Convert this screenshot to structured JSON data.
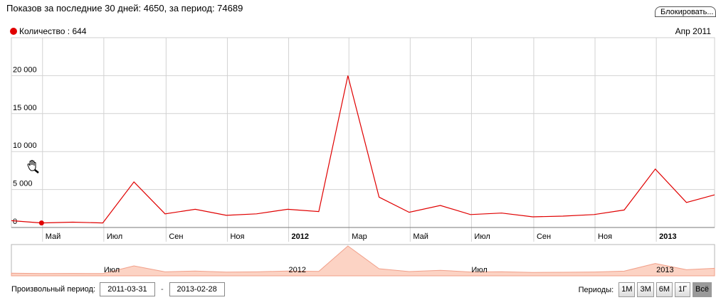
{
  "header": {
    "stats_text": "Показов за последние 30 дней: 4650, за период: 74689",
    "block_button_label": "Блокировать..."
  },
  "legend": {
    "series_label": "Количество : 644",
    "color": "#e00000"
  },
  "date_readout": "Апр 2011",
  "chart_data": {
    "type": "line",
    "x": [
      "2011-03-31",
      "2011-04-30",
      "2011-05-31",
      "2011-06-30",
      "2011-07-31",
      "2011-08-31",
      "2011-09-30",
      "2011-10-31",
      "2011-11-30",
      "2011-12-31",
      "2012-01-31",
      "2012-02-29",
      "2012-03-31",
      "2012-04-30",
      "2012-05-31",
      "2012-06-30",
      "2012-07-31",
      "2012-08-31",
      "2012-09-30",
      "2012-10-31",
      "2012-11-30",
      "2012-12-31",
      "2013-01-31",
      "2013-02-28"
    ],
    "series": [
      {
        "values": [
          900,
          600,
          700,
          600,
          6000,
          1800,
          2400,
          1600,
          1800,
          2400,
          2100,
          20000,
          4000,
          2000,
          2900,
          1700,
          1900,
          1400,
          1500,
          1700,
          2300,
          7700,
          3300,
          4300
        ],
        "color": "#e00000"
      }
    ],
    "highlight_index": 1,
    "y_ticks": [
      "0",
      "5 000",
      "10 000",
      "15 000",
      "20 000"
    ],
    "y_tick_values": [
      0,
      5000,
      10000,
      15000,
      20000
    ],
    "ylim": [
      0,
      25000
    ],
    "x_ticks": [
      {
        "label": "Май",
        "date": "2011-05-01",
        "bold": false
      },
      {
        "label": "Июл",
        "date": "2011-07-01",
        "bold": false
      },
      {
        "label": "Сен",
        "date": "2011-09-01",
        "bold": false
      },
      {
        "label": "Ноя",
        "date": "2011-11-01",
        "bold": false
      },
      {
        "label": "2012",
        "date": "2012-01-01",
        "bold": true
      },
      {
        "label": "Мар",
        "date": "2012-03-01",
        "bold": false
      },
      {
        "label": "Май",
        "date": "2012-05-01",
        "bold": false
      },
      {
        "label": "Июл",
        "date": "2012-07-01",
        "bold": false
      },
      {
        "label": "Сен",
        "date": "2012-09-01",
        "bold": false
      },
      {
        "label": "Ноя",
        "date": "2012-11-01",
        "bold": false
      },
      {
        "label": "2013",
        "date": "2013-01-01",
        "bold": true
      }
    ],
    "navigator_labels": [
      {
        "label": "Июл",
        "date": "2011-07-01"
      },
      {
        "label": "2012",
        "date": "2012-01-01"
      },
      {
        "label": "Июл",
        "date": "2012-07-01"
      },
      {
        "label": "2013",
        "date": "2013-01-01"
      }
    ],
    "grid": true
  },
  "range": {
    "label": "Произвольный период:",
    "from": "2011-03-31",
    "separator": "-",
    "to": "2013-02-28"
  },
  "periods": {
    "label": "Периоды:",
    "buttons": [
      "1М",
      "3М",
      "6М",
      "1Г",
      "Всё"
    ],
    "active_index": 4
  }
}
